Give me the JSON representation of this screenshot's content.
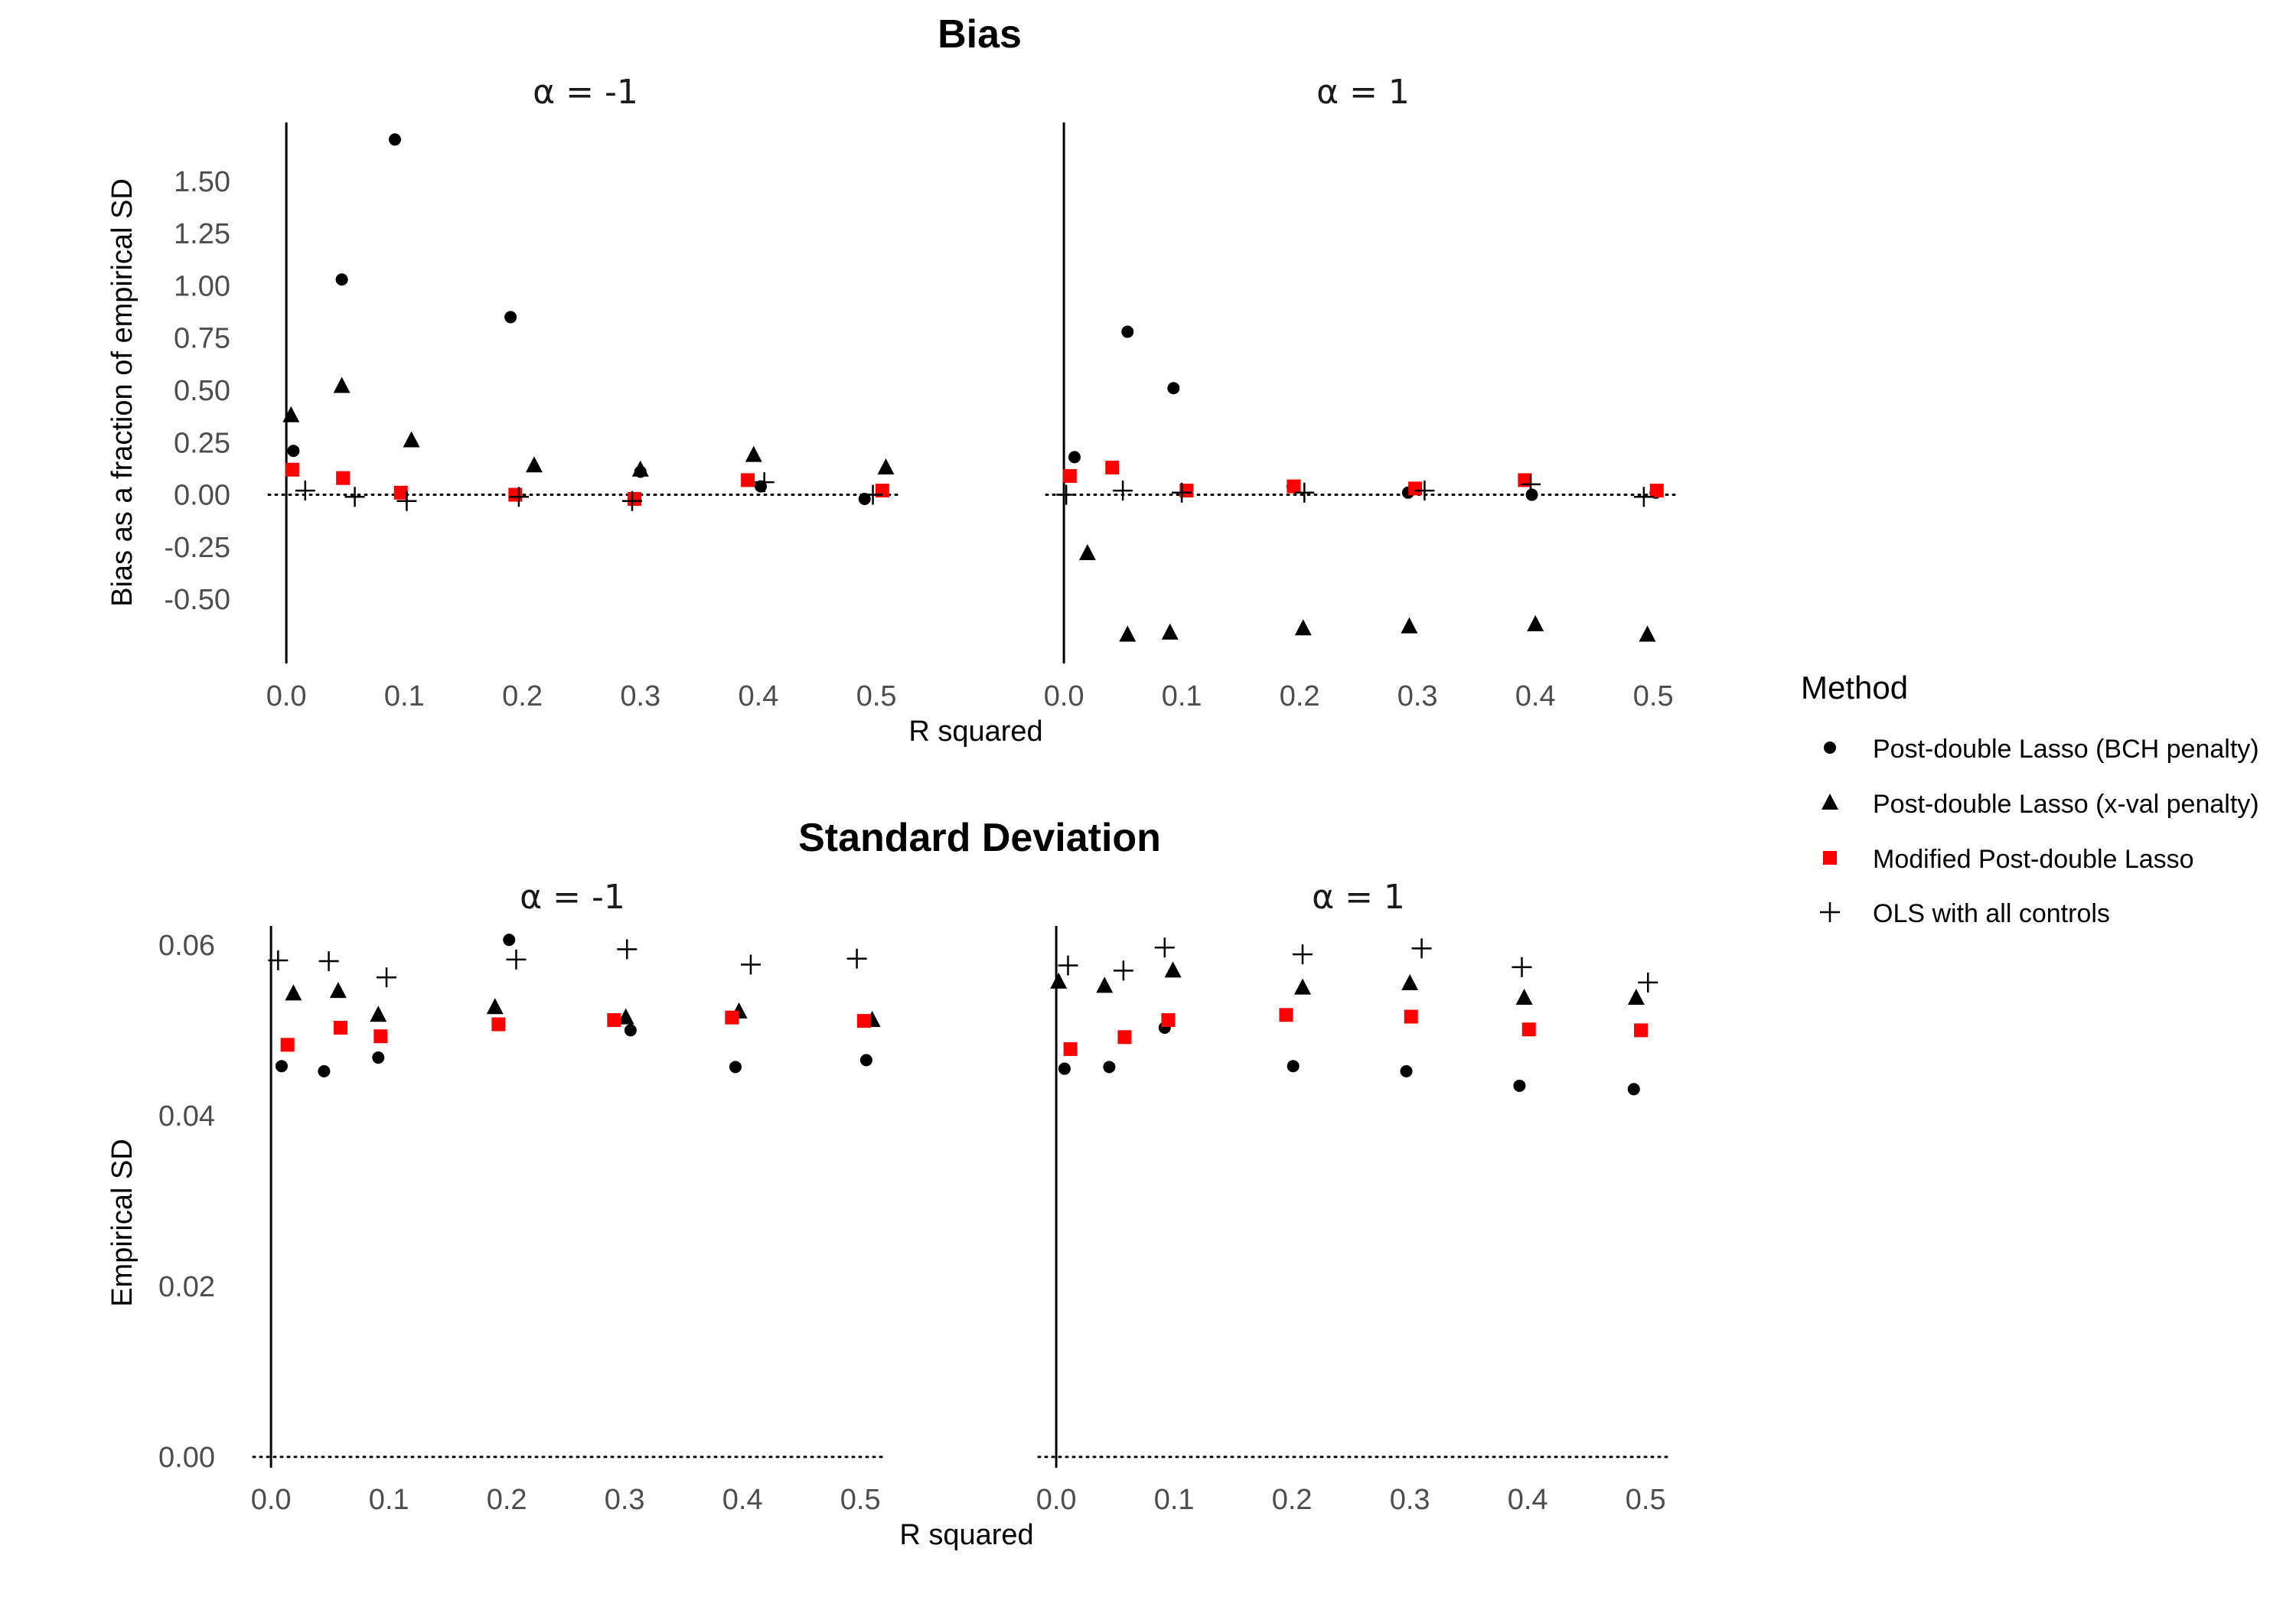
{
  "legend": {
    "title": "Method",
    "items": [
      {
        "label": "Post-double Lasso (BCH penalty)",
        "shape": "circle",
        "color": "#000000"
      },
      {
        "label": "Post-double Lasso (x-val penalty)",
        "shape": "triangle",
        "color": "#000000"
      },
      {
        "label": "Modified Post-double Lasso",
        "shape": "square",
        "color": "#ff0000"
      },
      {
        "label": "OLS with all controls",
        "shape": "plus",
        "color": "#000000"
      }
    ]
  },
  "chart_data": [
    {
      "type": "scatter",
      "title": "Bias",
      "xlabel": "R squared",
      "ylabel": "Bias as a fraction of empirical SD",
      "xlim": [
        -0.015,
        0.52
      ],
      "ylim": [
        -0.8,
        1.8
      ],
      "xticks": [
        "0.0",
        "0.1",
        "0.2",
        "0.3",
        "0.4",
        "0.5"
      ],
      "yticks": [
        "-0.50",
        "-0.25",
        "0.00",
        "0.25",
        "0.50",
        "0.75",
        "1.00",
        "1.25",
        "1.50"
      ],
      "reference_line": {
        "y": 0,
        "style": "dotted"
      },
      "legend_position": "right",
      "grid": false,
      "panels": [
        {
          "strip": "α = -1",
          "series": [
            {
              "name": "Post-double Lasso (BCH penalty)",
              "points": [
                [
                  0.006,
                  0.21
                ],
                [
                  0.047,
                  1.03
                ],
                [
                  0.092,
                  1.7
                ],
                [
                  0.19,
                  0.85
                ],
                [
                  0.3,
                  0.11
                ],
                [
                  0.402,
                  0.04
                ],
                [
                  0.49,
                  -0.02
                ]
              ]
            },
            {
              "name": "Post-double Lasso (x-val penalty)",
              "points": [
                [
                  0.004,
                  0.38
                ],
                [
                  0.047,
                  0.52
                ],
                [
                  0.106,
                  0.26
                ],
                [
                  0.21,
                  0.14
                ],
                [
                  0.3,
                  0.12
                ],
                [
                  0.396,
                  0.19
                ],
                [
                  0.508,
                  0.13
                ]
              ]
            },
            {
              "name": "Modified Post-double Lasso",
              "points": [
                [
                  0.005,
                  0.12
                ],
                [
                  0.048,
                  0.08
                ],
                [
                  0.097,
                  0.01
                ],
                [
                  0.194,
                  0.0
                ],
                [
                  0.295,
                  -0.02
                ],
                [
                  0.391,
                  0.07
                ],
                [
                  0.505,
                  0.02
                ]
              ]
            },
            {
              "name": "OLS with all controls",
              "points": [
                [
                  0.016,
                  0.02
                ],
                [
                  0.058,
                  -0.01
                ],
                [
                  0.102,
                  -0.03
                ],
                [
                  0.197,
                  -0.01
                ],
                [
                  0.293,
                  -0.03
                ],
                [
                  0.405,
                  0.06
                ],
                [
                  0.497,
                  0.0
                ]
              ]
            }
          ]
        },
        {
          "strip": "α = 1",
          "series": [
            {
              "name": "Post-double Lasso (BCH penalty)",
              "points": [
                [
                  0.009,
                  0.18
                ],
                [
                  0.054,
                  0.78
                ],
                [
                  0.093,
                  0.51
                ],
                [
                  0.194,
                  0.04
                ],
                [
                  0.292,
                  0.01
                ],
                [
                  0.397,
                  0.0
                ],
                [
                  0.502,
                  0.01
                ]
              ]
            },
            {
              "name": "Post-double Lasso (x-val penalty)",
              "points": [
                [
                  0.02,
                  -0.28
                ],
                [
                  0.054,
                  -0.67
                ],
                [
                  0.09,
                  -0.66
                ],
                [
                  0.203,
                  -0.64
                ],
                [
                  0.293,
                  -0.63
                ],
                [
                  0.4,
                  -0.62
                ],
                [
                  0.495,
                  -0.67
                ]
              ]
            },
            {
              "name": "Modified Post-double Lasso",
              "points": [
                [
                  0.005,
                  0.09
                ],
                [
                  0.041,
                  0.13
                ],
                [
                  0.104,
                  0.02
                ],
                [
                  0.195,
                  0.04
                ],
                [
                  0.298,
                  0.03
                ],
                [
                  0.391,
                  0.07
                ],
                [
                  0.503,
                  0.02
                ]
              ]
            },
            {
              "name": "OLS with all controls",
              "points": [
                [
                  0.002,
                  0.0
                ],
                [
                  0.05,
                  0.02
                ],
                [
                  0.1,
                  0.01
                ],
                [
                  0.204,
                  0.01
                ],
                [
                  0.306,
                  0.02
                ],
                [
                  0.396,
                  0.05
                ],
                [
                  0.492,
                  -0.01
                ]
              ]
            }
          ]
        }
      ]
    },
    {
      "type": "scatter",
      "title": "Standard Deviation",
      "xlabel": "R squared",
      "ylabel": "Empirical SD",
      "xlim": [
        -0.015,
        0.52
      ],
      "ylim": [
        -0.001,
        0.0625
      ],
      "xticks": [
        "0.0",
        "0.1",
        "0.2",
        "0.3",
        "0.4",
        "0.5"
      ],
      "yticks": [
        "0.00",
        "0.02",
        "0.04",
        "0.06"
      ],
      "reference_line": {
        "y": 0,
        "style": "dotted"
      },
      "legend_position": "right",
      "grid": false,
      "panels": [
        {
          "strip": "α = -1",
          "series": [
            {
              "name": "Post-double Lasso (BCH penalty)",
              "points": [
                [
                  0.009,
                  0.0458
                ],
                [
                  0.045,
                  0.0452
                ],
                [
                  0.091,
                  0.0468
                ],
                [
                  0.202,
                  0.0606
                ],
                [
                  0.305,
                  0.05
                ],
                [
                  0.394,
                  0.0457
                ],
                [
                  0.505,
                  0.0465
                ]
              ]
            },
            {
              "name": "Post-double Lasso (x-val penalty)",
              "points": [
                [
                  0.019,
                  0.0543
                ],
                [
                  0.057,
                  0.0546
                ],
                [
                  0.091,
                  0.0518
                ],
                [
                  0.19,
                  0.0527
                ],
                [
                  0.301,
                  0.0515
                ],
                [
                  0.397,
                  0.0522
                ],
                [
                  0.51,
                  0.0512
                ]
              ]
            },
            {
              "name": "Modified Post-double Lasso",
              "points": [
                [
                  0.014,
                  0.0483
                ],
                [
                  0.059,
                  0.0503
                ],
                [
                  0.093,
                  0.0493
                ],
                [
                  0.193,
                  0.0507
                ],
                [
                  0.291,
                  0.0512
                ],
                [
                  0.391,
                  0.0515
                ],
                [
                  0.503,
                  0.0511
                ]
              ]
            },
            {
              "name": "OLS with all controls",
              "points": [
                [
                  0.006,
                  0.0582
                ],
                [
                  0.049,
                  0.0581
                ],
                [
                  0.098,
                  0.0562
                ],
                [
                  0.208,
                  0.0583
                ],
                [
                  0.302,
                  0.0595
                ],
                [
                  0.407,
                  0.0577
                ],
                [
                  0.497,
                  0.0584
                ]
              ]
            }
          ]
        },
        {
          "strip": "α = 1",
          "series": [
            {
              "name": "Post-double Lasso (BCH penalty)",
              "points": [
                [
                  0.007,
                  0.0455
                ],
                [
                  0.045,
                  0.0457
                ],
                [
                  0.092,
                  0.0503
                ],
                [
                  0.201,
                  0.0458
                ],
                [
                  0.297,
                  0.0452
                ],
                [
                  0.393,
                  0.0435
                ],
                [
                  0.49,
                  0.0431
                ]
              ]
            },
            {
              "name": "Post-double Lasso (x-val penalty)",
              "points": [
                [
                  0.002,
                  0.0557
                ],
                [
                  0.041,
                  0.0552
                ],
                [
                  0.099,
                  0.057
                ],
                [
                  0.209,
                  0.055
                ],
                [
                  0.3,
                  0.0555
                ],
                [
                  0.397,
                  0.0538
                ],
                [
                  0.492,
                  0.0538
                ]
              ]
            },
            {
              "name": "Modified Post-double Lasso",
              "points": [
                [
                  0.012,
                  0.0478
                ],
                [
                  0.058,
                  0.0492
                ],
                [
                  0.095,
                  0.0512
                ],
                [
                  0.195,
                  0.0518
                ],
                [
                  0.301,
                  0.0516
                ],
                [
                  0.401,
                  0.0501
                ],
                [
                  0.496,
                  0.05
                ]
              ]
            },
            {
              "name": "OLS with all controls",
              "points": [
                [
                  0.01,
                  0.0576
                ],
                [
                  0.057,
                  0.057
                ],
                [
                  0.092,
                  0.0597
                ],
                [
                  0.209,
                  0.0589
                ],
                [
                  0.31,
                  0.0596
                ],
                [
                  0.395,
                  0.0574
                ],
                [
                  0.502,
                  0.0556
                ]
              ]
            }
          ]
        }
      ]
    }
  ]
}
